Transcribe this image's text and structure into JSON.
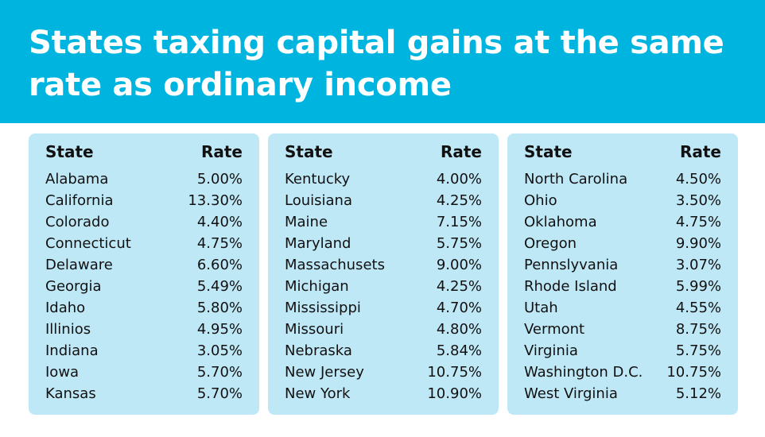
{
  "header": {
    "title": "States taxing capital gains at the same rate as ordinary income"
  },
  "tables": [
    {
      "columns": [
        "State",
        "Rate"
      ],
      "rows": [
        [
          "Alabama",
          "5.00%"
        ],
        [
          "California",
          "13.30%"
        ],
        [
          "Colorado",
          "4.40%"
        ],
        [
          "Connecticut",
          "4.75%"
        ],
        [
          "Delaware",
          "6.60%"
        ],
        [
          "Georgia",
          "5.49%"
        ],
        [
          "Idaho",
          "5.80%"
        ],
        [
          "Illinios",
          "4.95%"
        ],
        [
          "Indiana",
          "3.05%"
        ],
        [
          "Iowa",
          "5.70%"
        ],
        [
          "Kansas",
          "5.70%"
        ]
      ]
    },
    {
      "columns": [
        "State",
        "Rate"
      ],
      "rows": [
        [
          "Kentucky",
          "4.00%"
        ],
        [
          "Louisiana",
          "4.25%"
        ],
        [
          "Maine",
          "7.15%"
        ],
        [
          "Maryland",
          "5.75%"
        ],
        [
          "Massachusets",
          "9.00%"
        ],
        [
          "Michigan",
          "4.25%"
        ],
        [
          "Mississippi",
          "4.70%"
        ],
        [
          "Missouri",
          "4.80%"
        ],
        [
          "Nebraska",
          "5.84%"
        ],
        [
          "New Jersey",
          "10.75%"
        ],
        [
          "New York",
          "10.90%"
        ]
      ]
    },
    {
      "columns": [
        "State",
        "Rate"
      ],
      "rows": [
        [
          "North Carolina",
          "4.50%"
        ],
        [
          "Ohio",
          "3.50%"
        ],
        [
          "Oklahoma",
          "4.75%"
        ],
        [
          "Oregon",
          "9.90%"
        ],
        [
          "Pennslyvania",
          "3.07%"
        ],
        [
          "Rhode Island",
          "5.99%"
        ],
        [
          "Utah",
          "4.55%"
        ],
        [
          "Vermont",
          "8.75%"
        ],
        [
          "Virginia",
          "5.75%"
        ],
        [
          "Washington D.C.",
          "10.75%"
        ],
        [
          "West Virginia",
          "5.12%"
        ]
      ]
    }
  ]
}
